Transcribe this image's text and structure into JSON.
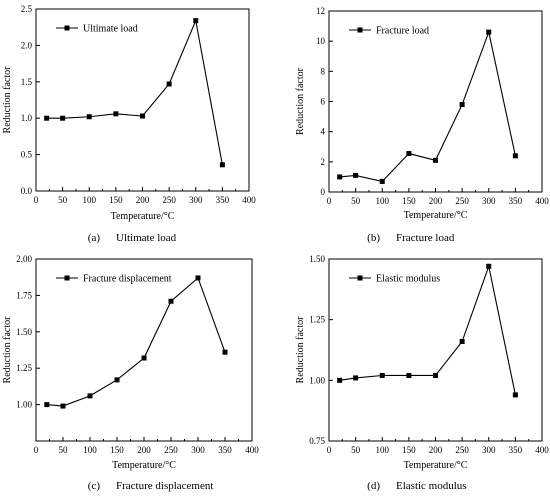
{
  "chart_data": [
    {
      "type": "line",
      "caption_letter": "(a)",
      "caption_text": "Ultimate load",
      "title": "",
      "xlabel": "Temperature/°C",
      "ylabel": "Reduction factor",
      "xlim": [
        0,
        400
      ],
      "ylim": [
        0,
        2.5
      ],
      "xticks": [
        "0",
        "50",
        "100",
        "150",
        "200",
        "250",
        "300",
        "350",
        "400"
      ],
      "yticks": [
        "0.0",
        "0.5",
        "1.0",
        "1.5",
        "2.0",
        "2.5"
      ],
      "legend_position": "top-left",
      "grid": false,
      "series": [
        {
          "name": "Ultimate load",
          "x": [
            20,
            50,
            100,
            150,
            200,
            250,
            300,
            350
          ],
          "values": [
            1.0,
            1.0,
            1.02,
            1.06,
            1.03,
            1.47,
            2.34,
            0.36
          ]
        }
      ]
    },
    {
      "type": "line",
      "caption_letter": "(b)",
      "caption_text": "Fracture load",
      "title": "",
      "xlabel": "Temperature/°C",
      "ylabel": "Reduction factor",
      "xlim": [
        0,
        400
      ],
      "ylim": [
        0,
        12
      ],
      "xticks": [
        "0",
        "50",
        "100",
        "150",
        "200",
        "250",
        "300",
        "350",
        "400"
      ],
      "yticks": [
        "0",
        "2",
        "4",
        "6",
        "8",
        "10",
        "12"
      ],
      "legend_position": "top-left",
      "grid": false,
      "series": [
        {
          "name": "Fracture load",
          "x": [
            20,
            50,
            100,
            150,
            200,
            250,
            300,
            350
          ],
          "values": [
            1.0,
            1.1,
            0.7,
            2.55,
            2.1,
            5.8,
            10.6,
            2.4
          ]
        }
      ]
    },
    {
      "type": "line",
      "caption_letter": "(c)",
      "caption_text": "Fracture displacement",
      "title": "",
      "xlabel": "Temperature/°C",
      "ylabel": "Reduction factor",
      "xlim": [
        0,
        400
      ],
      "ylim": [
        0.75,
        2.0
      ],
      "xticks": [
        "0",
        "50",
        "100",
        "150",
        "200",
        "250",
        "300",
        "350",
        "400"
      ],
      "yticks": [
        "1.00",
        "1.25",
        "1.50",
        "1.75",
        "2.00"
      ],
      "legend_position": "top-left",
      "grid": false,
      "series": [
        {
          "name": "Fracture displacement",
          "x": [
            20,
            50,
            100,
            150,
            200,
            250,
            300,
            350
          ],
          "values": [
            1.0,
            0.99,
            1.06,
            1.17,
            1.32,
            1.71,
            1.87,
            1.36
          ]
        }
      ]
    },
    {
      "type": "line",
      "caption_letter": "(d)",
      "caption_text": "Elastic modulus",
      "title": "",
      "xlabel": "Temperature/°C",
      "ylabel": "Reduction factor",
      "xlim": [
        0,
        400
      ],
      "ylim": [
        0.75,
        1.5
      ],
      "xticks": [
        "0",
        "50",
        "100",
        "150",
        "200",
        "250",
        "300",
        "350",
        "400"
      ],
      "yticks": [
        "0.75",
        "1.00",
        "1.25",
        "1.50"
      ],
      "legend_position": "top-left",
      "grid": false,
      "series": [
        {
          "name": "Elastic modulus",
          "x": [
            20,
            50,
            100,
            150,
            200,
            250,
            300,
            350
          ],
          "values": [
            1.0,
            1.01,
            1.02,
            1.02,
            1.02,
            1.16,
            1.47,
            0.94
          ]
        }
      ]
    }
  ]
}
